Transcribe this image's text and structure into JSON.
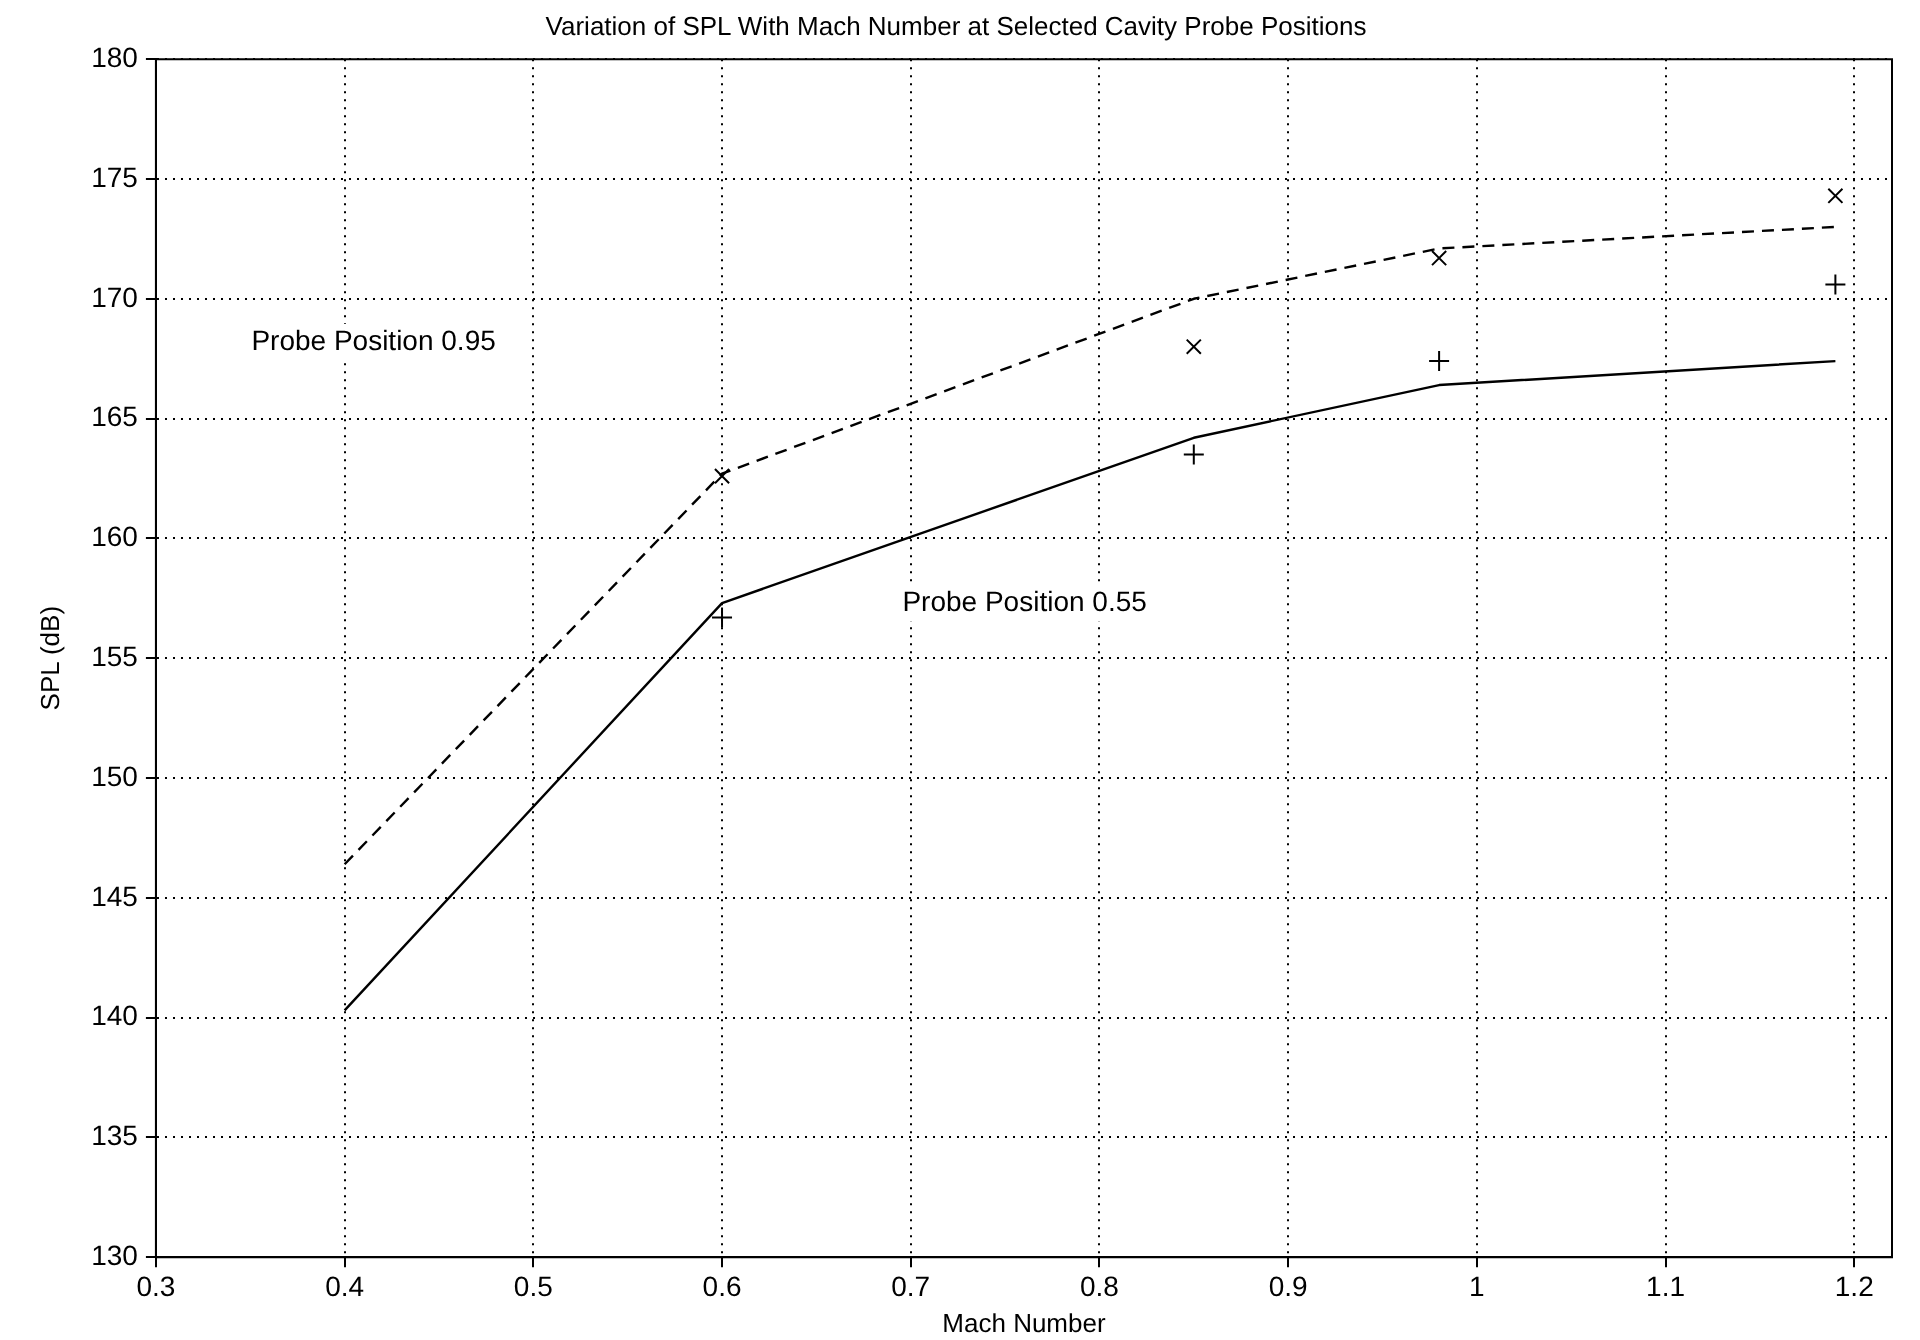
{
  "chart_data": {
    "type": "line",
    "title": "Variation of SPL With Mach Number at Selected Cavity Probe Positions",
    "xlabel": "Mach Number",
    "ylabel": "SPL (dB)",
    "xlim": [
      0.3,
      1.22
    ],
    "xticks": [
      0.3,
      0.4,
      0.5,
      0.6,
      0.7,
      0.8,
      0.9,
      {
        "value": 1.0,
        "label": "1"
      },
      1.1,
      1.2
    ],
    "ylim": [
      130,
      180
    ],
    "yticks": [
      130,
      135,
      140,
      145,
      150,
      155,
      160,
      165,
      170,
      175,
      180
    ],
    "grid": true,
    "series": [
      {
        "type": "line",
        "color": "#000000",
        "line_style": "solid",
        "marker": "none",
        "x": [
          0.4,
          0.6,
          0.85,
          0.98,
          1.19
        ],
        "values": [
          140.3,
          157.3,
          164.2,
          166.4,
          167.4
        ]
      },
      {
        "type": "line",
        "color": "#000000",
        "line_style": "dashed",
        "marker": "none",
        "x": [
          0.4,
          0.6,
          0.85,
          0.98,
          1.19
        ],
        "values": [
          146.4,
          162.7,
          170.0,
          172.1,
          173.0
        ]
      },
      {
        "type": "scatter",
        "color": "#000000",
        "marker": "cross",
        "x": [
          0.6,
          0.85,
          0.98,
          1.19
        ],
        "values": [
          156.7,
          163.5,
          167.4,
          170.6
        ]
      },
      {
        "type": "scatter",
        "color": "#000000",
        "marker": "x",
        "x": [
          0.6,
          0.85,
          0.98,
          1.19
        ],
        "values": [
          162.6,
          168.0,
          171.7,
          174.3
        ]
      }
    ],
    "annotations": [
      "Probe Position 0.95",
      "Probe Position 0.55"
    ]
  }
}
